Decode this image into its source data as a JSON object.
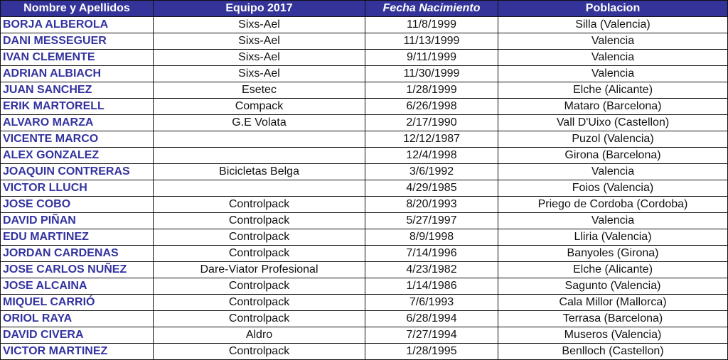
{
  "colors": {
    "header_bg": "#333399",
    "header_text": "#ffffff",
    "name_text": "#3333a0"
  },
  "headers": [
    "Nombre y Apellidos",
    "Equipo 2017",
    "Fecha Nacimiento",
    "Poblacion"
  ],
  "rows": [
    [
      "BORJA ALBEROLA",
      "Sixs-Ael",
      "11/8/1999",
      "Silla (Valencia)"
    ],
    [
      "DANI MESSEGUER",
      "Sixs-Ael",
      "11/13/1999",
      "Valencia"
    ],
    [
      "IVAN CLEMENTE",
      "Sixs-Ael",
      "9/11/1999",
      "Valencia"
    ],
    [
      "ADRIAN ALBIACH",
      "Sixs-Ael",
      "11/30/1999",
      "Valencia"
    ],
    [
      "JUAN SANCHEZ",
      "Esetec",
      "1/28/1999",
      "Elche (Alicante)"
    ],
    [
      "ERIK MARTORELL",
      "Compack",
      "6/26/1998",
      "Mataro (Barcelona)"
    ],
    [
      "ALVARO MARZA",
      "G.E Volata",
      "2/17/1990",
      "Vall D'Uixo (Castellon)"
    ],
    [
      "VICENTE MARCO",
      "",
      "12/12/1987",
      "Puzol (Valencia)"
    ],
    [
      "ALEX GONZALEZ",
      "",
      "12/4/1998",
      "Girona (Barcelona)"
    ],
    [
      "JOAQUIN CONTRERAS",
      "Bicicletas Belga",
      "3/6/1992",
      "Valencia"
    ],
    [
      "VICTOR LLUCH",
      "",
      "4/29/1985",
      "Foios (Valencia)"
    ],
    [
      "JOSE COBO",
      "Controlpack",
      "8/20/1993",
      "Priego de Cordoba (Cordoba)"
    ],
    [
      "DAVID PIÑAN",
      "Controlpack",
      "5/27/1997",
      "Valencia"
    ],
    [
      "EDU MARTINEZ",
      "Controlpack",
      "8/9/1998",
      "Lliria (Valencia)"
    ],
    [
      "JORDAN CARDENAS",
      "Controlpack",
      "7/14/1996",
      "Banyoles (Girona)"
    ],
    [
      "JOSE CARLOS NUÑEZ",
      "Dare-Viator Profesional",
      "4/23/1982",
      "Elche (Alicante)"
    ],
    [
      "JOSE ALCAINA",
      "Controlpack",
      "1/14/1986",
      "Sagunto (Valencia)"
    ],
    [
      "MIQUEL CARRIÓ",
      "Controlpack",
      "7/6/1993",
      "Cala Millor (Mallorca)"
    ],
    [
      "ORIOL RAYA",
      "Controlpack",
      "6/28/1994",
      "Terrasa (Barcelona)"
    ],
    [
      "DAVID CIVERA",
      "Aldro",
      "7/27/1994",
      "Museros (Valencia)"
    ],
    [
      "VICTOR MARTINEZ",
      "Controlpack",
      "1/28/1995",
      "Benlloch (Castellon)"
    ]
  ]
}
